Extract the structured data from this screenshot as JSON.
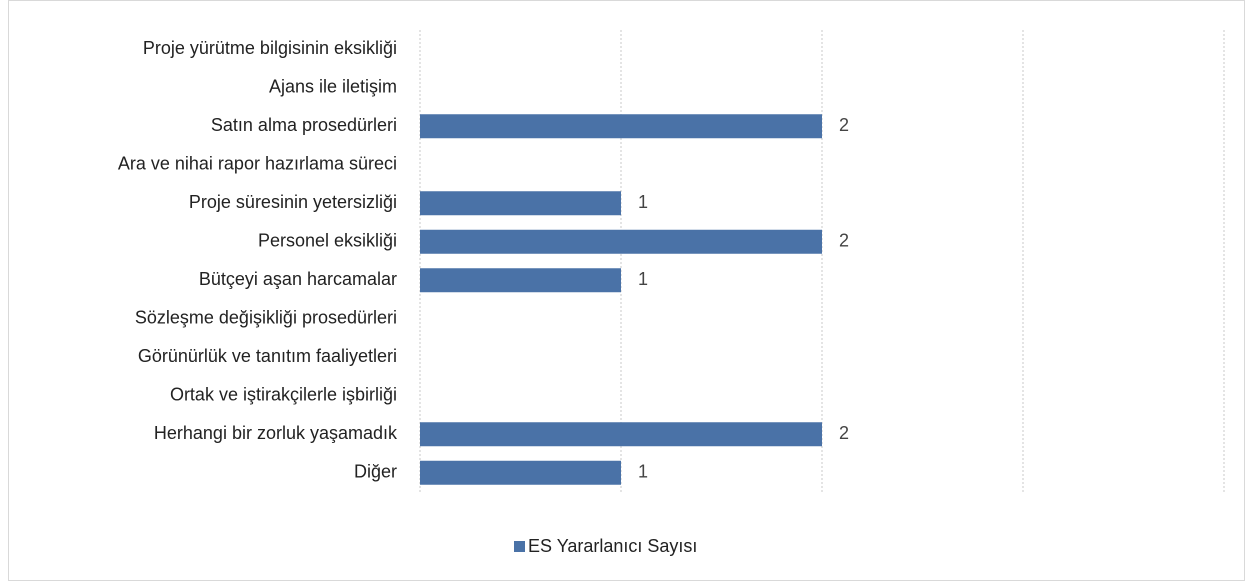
{
  "chart_data": {
    "type": "bar",
    "orientation": "horizontal",
    "categories": [
      "Proje yürütme bilgisinin eksikliği",
      "Ajans ile iletişim",
      "Satın alma prosedürleri",
      "Ara ve nihai rapor hazırlama süreci",
      "Proje süresinin yetersizliği",
      "Personel eksikliği",
      "Bütçeyi aşan harcamalar",
      "Sözleşme değişikliği prosedürleri",
      "Görünürlük ve tanıtım faaliyetleri",
      "Ortak ve iştirakçilerle işbirliği",
      "Herhangi bir zorluk yaşamadık",
      "Diğer"
    ],
    "series": [
      {
        "name": "ES Yararlanıcı Sayısı",
        "color": "#4a72a7",
        "values": [
          null,
          null,
          2,
          null,
          1,
          2,
          1,
          null,
          null,
          null,
          2,
          1
        ]
      }
    ],
    "xlim": [
      0,
      4
    ],
    "xticks": [
      0,
      1,
      2,
      3,
      4
    ],
    "grid": true,
    "legend": "bottom"
  }
}
